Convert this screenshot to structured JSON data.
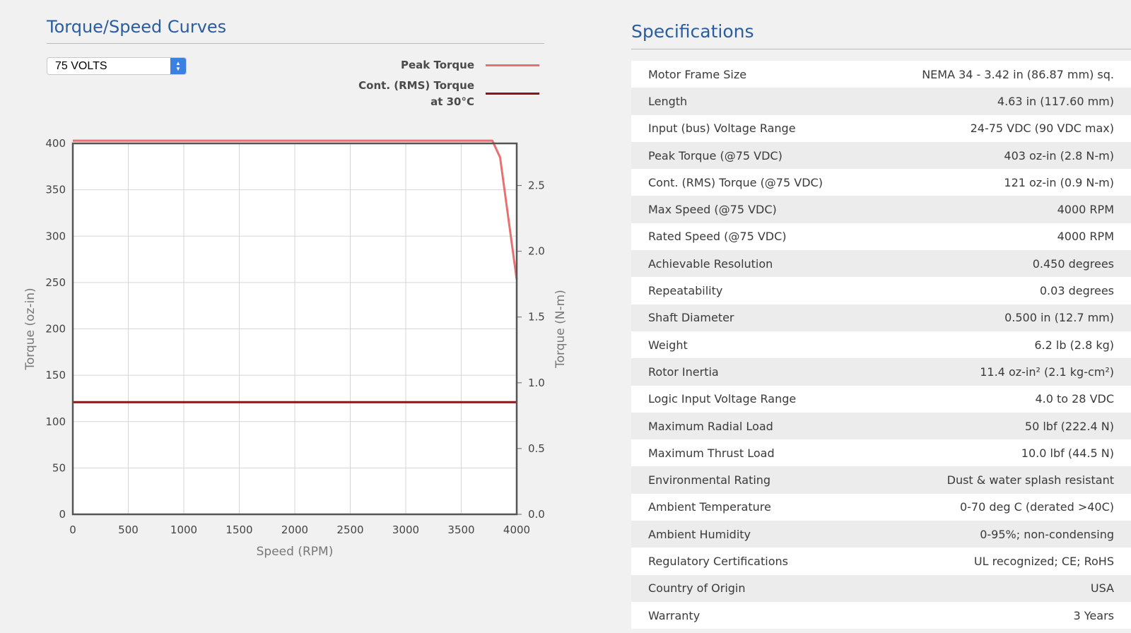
{
  "torque_section": {
    "title": "Torque/Speed Curves",
    "voltage_select": {
      "value": "75 VOLTS"
    },
    "legend": [
      {
        "label_line1": "Peak Torque",
        "label_line2": "",
        "color": "#ea7070"
      },
      {
        "label_line1": "Cont. (RMS) Torque",
        "label_line2": "at 30°C",
        "color": "#8b1414"
      }
    ]
  },
  "chart_data": {
    "type": "line",
    "xlabel": "Speed (RPM)",
    "ylabel": "Torque (oz-in)",
    "y2label": "Torque (N-m)",
    "xlim": [
      0,
      4000
    ],
    "ylim": [
      0,
      400
    ],
    "y2lim": [
      0,
      2.82
    ],
    "x_ticks": [
      0,
      500,
      1000,
      1500,
      2000,
      2500,
      3000,
      3500,
      4000
    ],
    "y_ticks": [
      0,
      50,
      100,
      150,
      200,
      250,
      300,
      350,
      400
    ],
    "y2_ticks": [
      "0.0",
      "0.5",
      "1.0",
      "1.5",
      "2.0",
      "2.5"
    ],
    "grid": true,
    "series": [
      {
        "name": "Peak Torque",
        "color": "#ea7070",
        "x": [
          0,
          3780,
          3850,
          4000
        ],
        "y": [
          403,
          403,
          385,
          253
        ]
      },
      {
        "name": "Cont. (RMS) Torque at 30°C",
        "color": "#8b1414",
        "x": [
          0,
          4000
        ],
        "y": [
          121,
          121
        ]
      }
    ]
  },
  "specs_section": {
    "title": "Specifications",
    "rows": [
      {
        "label": "Motor Frame Size",
        "value": "NEMA 34 - 3.42 in (86.87 mm) sq."
      },
      {
        "label": "Length",
        "value": "4.63 in (117.60 mm)"
      },
      {
        "label": "Input (bus) Voltage Range",
        "value": "24-75 VDC (90 VDC max)"
      },
      {
        "label": "Peak Torque (@75 VDC)",
        "value": "403 oz-in (2.8 N-m)"
      },
      {
        "label": "Cont. (RMS) Torque (@75 VDC)",
        "value": "121 oz-in (0.9 N-m)"
      },
      {
        "label": "Max Speed (@75 VDC)",
        "value": "4000 RPM"
      },
      {
        "label": "Rated Speed (@75 VDC)",
        "value": "4000 RPM"
      },
      {
        "label": "Achievable Resolution",
        "value": "0.450 degrees"
      },
      {
        "label": "Repeatability",
        "value": "0.03 degrees"
      },
      {
        "label": "Shaft Diameter",
        "value": "0.500 in (12.7 mm)"
      },
      {
        "label": "Weight",
        "value": "6.2 lb (2.8 kg)"
      },
      {
        "label": "Rotor Inertia",
        "value": "11.4 oz-in² (2.1 kg-cm²)"
      },
      {
        "label": "Logic Input Voltage Range",
        "value": "4.0 to 28 VDC"
      },
      {
        "label": "Maximum Radial Load",
        "value": "50 lbf (222.4 N)"
      },
      {
        "label": "Maximum Thrust Load",
        "value": "10.0 lbf (44.5 N)"
      },
      {
        "label": "Environmental Rating",
        "value": "Dust & water splash resistant"
      },
      {
        "label": "Ambient Temperature",
        "value": "0-70 deg C (derated >40C)"
      },
      {
        "label": "Ambient Humidity",
        "value": "0-95%; non-condensing"
      },
      {
        "label": "Regulatory Certifications",
        "value": "UL recognized; CE; RoHS"
      },
      {
        "label": "Country of Origin",
        "value": "USA"
      },
      {
        "label": "Warranty",
        "value": "3 Years"
      }
    ]
  }
}
